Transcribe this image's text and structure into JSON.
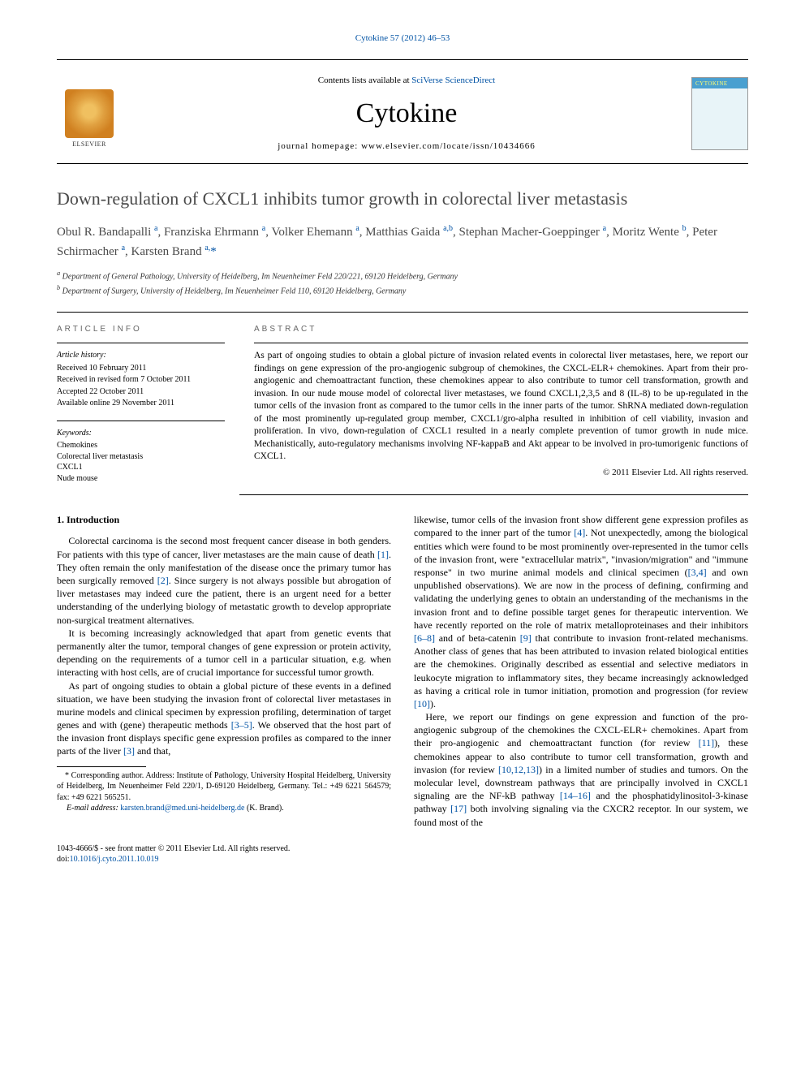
{
  "citation": {
    "journal": "Cytokine",
    "volume_issue": "57 (2012) 46–53"
  },
  "header": {
    "contents_prefix": "Contents lists available at ",
    "contents_link": "SciVerse ScienceDirect",
    "journal_name": "Cytokine",
    "homepage_prefix": "journal homepage: ",
    "homepage_url": "www.elsevier.com/locate/issn/10434666"
  },
  "title": "Down-regulation of CXCL1 inhibits tumor growth in colorectal liver metastasis",
  "authors_html": "Obul R. Bandapalli <sup>a</sup>, Franziska Ehrmann <sup>a</sup>, Volker Ehemann <sup>a</sup>, Matthias Gaida <sup>a,b</sup>, Stephan Macher-Goeppinger <sup>a</sup>, Moritz Wente <sup>b</sup>, Peter Schirmacher <sup>a</sup>, Karsten Brand <sup>a,</sup><span class='star'>*</span>",
  "affiliations": [
    "a Department of General Pathology, University of Heidelberg, Im Neuenheimer Feld 220/221, 69120 Heidelberg, Germany",
    "b Department of Surgery, University of Heidelberg, Im Neuenheimer Feld 110, 69120 Heidelberg, Germany"
  ],
  "article_info": {
    "heading": "ARTICLE INFO",
    "history_label": "Article history:",
    "history": [
      "Received 10 February 2011",
      "Received in revised form 7 October 2011",
      "Accepted 22 October 2011",
      "Available online 29 November 2011"
    ],
    "keywords_label": "Keywords:",
    "keywords": [
      "Chemokines",
      "Colorectal liver metastasis",
      "CXCL1",
      "Nude mouse"
    ]
  },
  "abstract": {
    "heading": "ABSTRACT",
    "text": "As part of ongoing studies to obtain a global picture of invasion related events in colorectal liver metastases, here, we report our findings on gene expression of the pro-angiogenic subgroup of chemokines, the CXCL-ELR+ chemokines. Apart from their pro-angiogenic and chemoattractant function, these chemokines appear to also contribute to tumor cell transformation, growth and invasion. In our nude mouse model of colorectal liver metastases, we found CXCL1,2,3,5 and 8 (IL-8) to be up-regulated in the tumor cells of the invasion front as compared to the tumor cells in the inner parts of the tumor. ShRNA mediated down-regulation of the most prominently up-regulated group member, CXCL1/gro-alpha resulted in inhibition of cell viability, invasion and proliferation. In vivo, down-regulation of CXCL1 resulted in a nearly complete prevention of tumor growth in nude mice. Mechanistically, auto-regulatory mechanisms involving NF-kappaB and Akt appear to be involved in pro-tumorigenic functions of CXCL1.",
    "copyright": "© 2011 Elsevier Ltd. All rights reserved."
  },
  "body": {
    "section1_heading": "1. Introduction",
    "p1": "Colorectal carcinoma is the second most frequent cancer disease in both genders. For patients with this type of cancer, liver metastases are the main cause of death [1]. They often remain the only manifestation of the disease once the primary tumor has been surgically removed [2]. Since surgery is not always possible but abrogation of liver metastases may indeed cure the patient, there is an urgent need for a better understanding of the underlying biology of metastatic growth to develop appropriate non-surgical treatment alternatives.",
    "p2": "It is becoming increasingly acknowledged that apart from genetic events that permanently alter the tumor, temporal changes of gene expression or protein activity, depending on the requirements of a tumor cell in a particular situation, e.g. when interacting with host cells, are of crucial importance for successful tumor growth.",
    "p3": "As part of ongoing studies to obtain a global picture of these events in a defined situation, we have been studying the invasion front of colorectal liver metastases in murine models and clinical specimen by expression profiling, determination of target genes and with (gene) therapeutic methods [3–5]. We observed that the host part of the invasion front displays specific gene expression profiles as compared to the inner parts of the liver [3] and that,",
    "p4": "likewise, tumor cells of the invasion front show different gene expression profiles as compared to the inner part of the tumor [4]. Not unexpectedly, among the biological entities which were found to be most prominently over-represented in the tumor cells of the invasion front, were \"extracellular matrix\", \"invasion/migration\" and \"immune response\" in two murine animal models and clinical specimen ([3,4] and own unpublished observations). We are now in the process of defining, confirming and validating the underlying genes to obtain an understanding of the mechanisms in the invasion front and to define possible target genes for therapeutic intervention. We have recently reported on the role of matrix metalloproteinases and their inhibitors [6–8] and of beta-catenin [9] that contribute to invasion front-related mechanisms. Another class of genes that has been attributed to invasion related biological entities are the chemokines. Originally described as essential and selective mediators in leukocyte migration to inflammatory sites, they became increasingly acknowledged as having a critical role in tumor initiation, promotion and progression (for review [10]).",
    "p5": "Here, we report our findings on gene expression and function of the pro-angiogenic subgroup of the chemokines the CXCL-ELR+ chemokines. Apart from their pro-angiogenic and chemoattractant function (for review [11]), these chemokines appear to also contribute to tumor cell transformation, growth and invasion (for review [10,12,13]) in a limited number of studies and tumors. On the molecular level, downstream pathways that are principally involved in CXCL1 signaling are the NF-kB pathway [14–16] and the phosphatidylinositol-3-kinase pathway [17] both involving signaling via the CXCR2 receptor. In our system, we found most of the",
    "refs": {
      "r1": "[1]",
      "r2": "[2]",
      "r35": "[3–5]",
      "r3": "[3]",
      "r4": "[4]",
      "r34": "[3,4]",
      "r68": "[6–8]",
      "r9": "[9]",
      "r10": "[10]",
      "r11": "[11]",
      "r101213": "[10,12,13]",
      "r1416": "[14–16]",
      "r17": "[17]"
    }
  },
  "footnote": {
    "corr": "* Corresponding author. Address: Institute of Pathology, University Hospital Heidelberg, University of Heidelberg, Im Neuenheimer Feld 220/1, D-69120 Heidelberg, Germany. Tel.: +49 6221 564579; fax: +49 6221 565251.",
    "email_label": "E-mail address:",
    "email": "karsten.brand@med.uni-heidelberg.de",
    "email_suffix": "(K. Brand)."
  },
  "footer": {
    "left1": "1043-4666/$ - see front matter © 2011 Elsevier Ltd. All rights reserved.",
    "left2_prefix": "doi:",
    "doi": "10.1016/j.cyto.2011.10.019"
  },
  "colors": {
    "link": "#0052a4",
    "text": "#000000",
    "title_gray": "#4a4a4a",
    "heading_gray": "#666666"
  }
}
